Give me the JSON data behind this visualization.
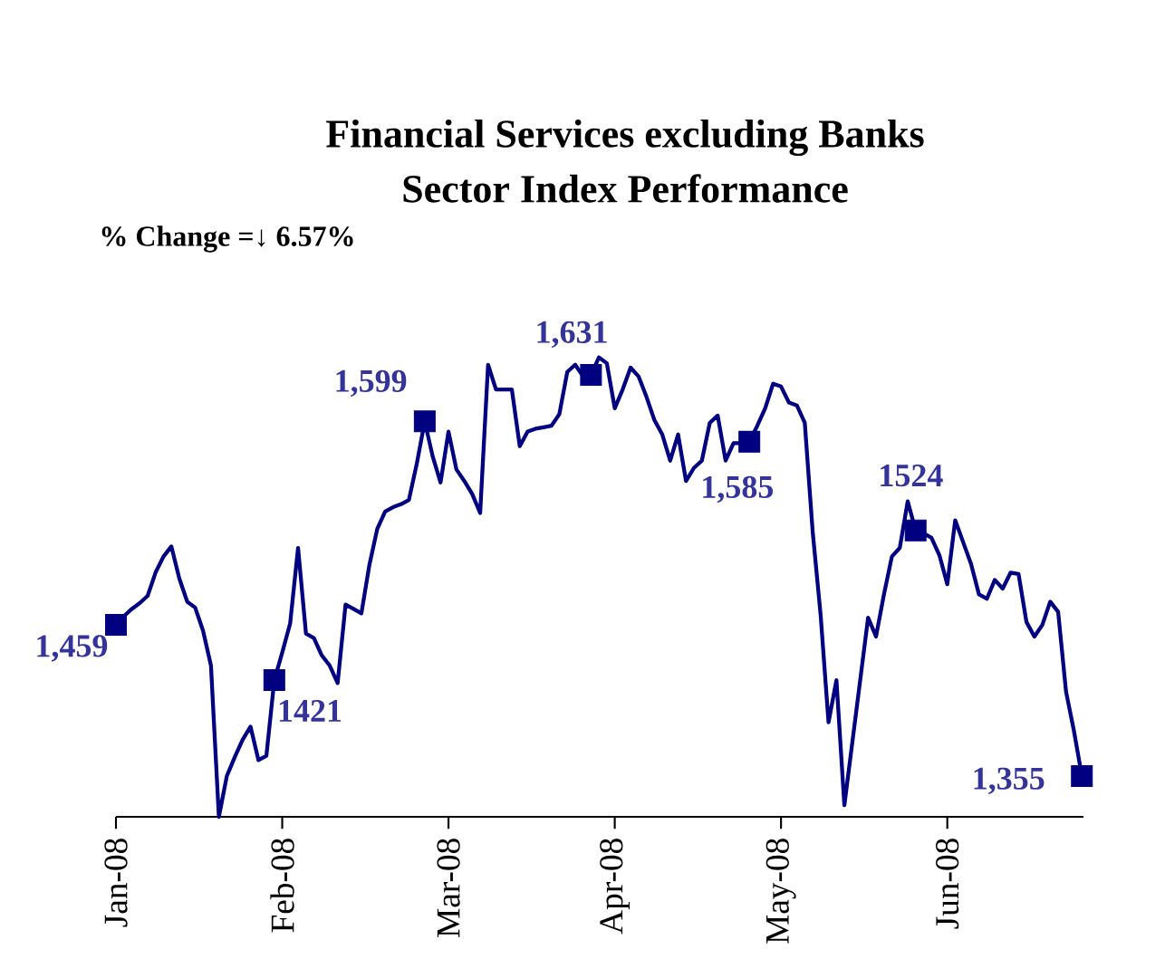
{
  "chart_data": {
    "type": "line",
    "title": "Financial Services excluding Banks",
    "subtitle": "Sector Index Performance",
    "annotations": [
      "% Change =↓ 6.57%"
    ],
    "categories": [
      "Jan-08",
      null,
      null,
      null,
      null,
      null,
      null,
      null,
      null,
      null,
      null,
      null,
      null,
      null,
      null,
      null,
      null,
      null,
      null,
      null,
      null,
      "Feb-08",
      null,
      null,
      null,
      null,
      null,
      null,
      null,
      null,
      null,
      null,
      null,
      null,
      null,
      null,
      null,
      null,
      null,
      null,
      null,
      null,
      "Mar-08",
      null,
      null,
      null,
      null,
      null,
      null,
      null,
      null,
      null,
      null,
      null,
      null,
      null,
      null,
      null,
      null,
      null,
      null,
      null,
      null,
      "Apr-08",
      null,
      null,
      null,
      null,
      null,
      null,
      null,
      null,
      null,
      null,
      null,
      null,
      null,
      null,
      null,
      null,
      null,
      null,
      null,
      null,
      "May-08",
      null,
      null,
      null,
      null,
      null,
      null,
      null,
      null,
      null,
      null,
      null,
      null,
      null,
      null,
      null,
      null,
      null,
      null,
      null,
      null,
      "Jun-08",
      null,
      null,
      null,
      null,
      null,
      null,
      null,
      null,
      null,
      null,
      null,
      null,
      null,
      null,
      null,
      null,
      null
    ],
    "tick_labels": "x",
    "series": [
      {
        "color": "#000080",
        "marker": "none",
        "values": [
          1459,
          1465,
          1470,
          1474,
          1479,
          1495,
          1506,
          1513,
          1491,
          1475,
          1471,
          1455,
          1431,
          1327,
          1355,
          1368,
          1380,
          1389,
          1366,
          1369,
          1421,
          1440,
          1460,
          1512,
          1453,
          1450,
          1438,
          1431,
          1419,
          1473,
          1470,
          1467,
          1500,
          1525,
          1537,
          1540,
          1542,
          1545,
          1570,
          1599,
          1575,
          1557,
          1592,
          1566,
          1558,
          1549,
          1536,
          1638,
          1621,
          1621,
          1621,
          1582,
          1592,
          1594,
          1595,
          1596,
          1604,
          1633,
          1638,
          1630,
          1631,
          1643,
          1639,
          1608,
          1621,
          1636,
          1630,
          1616,
          1600,
          1590,
          1572,
          1590,
          1558,
          1567,
          1572,
          1598,
          1603,
          1572,
          1584,
          1584,
          1585,
          1596,
          1608,
          1625,
          1623,
          1612,
          1610,
          1598,
          1523,
          1466,
          1392,
          1421,
          1335,
          1378,
          1421,
          1464,
          1451,
          1480,
          1506,
          1512,
          1544,
          1524,
          1522,
          1519,
          1507,
          1487,
          1531,
          1516,
          1501,
          1480,
          1477,
          1490,
          1484,
          1495,
          1494,
          1461,
          1451,
          1459,
          1475,
          1468,
          1413,
          1386,
          1355
        ]
      },
      {
        "type": "scatter",
        "color": "#000080",
        "marker": "square",
        "values": [
          1459,
          null,
          null,
          null,
          null,
          null,
          null,
          null,
          null,
          null,
          null,
          null,
          null,
          null,
          null,
          null,
          null,
          null,
          null,
          null,
          1421,
          null,
          null,
          null,
          null,
          null,
          null,
          null,
          null,
          null,
          null,
          null,
          null,
          null,
          null,
          null,
          null,
          null,
          null,
          1599,
          null,
          null,
          null,
          null,
          null,
          null,
          null,
          null,
          null,
          null,
          null,
          null,
          null,
          null,
          null,
          null,
          null,
          null,
          null,
          null,
          1631,
          null,
          null,
          null,
          null,
          null,
          null,
          null,
          null,
          null,
          null,
          null,
          null,
          null,
          null,
          null,
          null,
          null,
          null,
          null,
          1585,
          null,
          null,
          null,
          null,
          null,
          null,
          null,
          null,
          null,
          null,
          null,
          null,
          null,
          null,
          null,
          null,
          null,
          null,
          null,
          null,
          1524,
          null,
          null,
          null,
          null,
          null,
          null,
          null,
          null,
          null,
          null,
          null,
          null,
          null,
          null,
          null,
          null,
          null,
          null,
          null,
          null,
          1355
        ],
        "value_labels": [
          "1,459",
          null,
          null,
          null,
          null,
          null,
          null,
          null,
          null,
          null,
          null,
          null,
          null,
          null,
          null,
          null,
          null,
          null,
          null,
          null,
          "1421",
          null,
          null,
          null,
          null,
          null,
          null,
          null,
          null,
          null,
          null,
          null,
          null,
          null,
          null,
          null,
          null,
          null,
          null,
          "1,599",
          null,
          null,
          null,
          null,
          null,
          null,
          null,
          null,
          null,
          null,
          null,
          null,
          null,
          null,
          null,
          null,
          null,
          null,
          null,
          null,
          "1,631",
          null,
          null,
          null,
          null,
          null,
          null,
          null,
          null,
          null,
          null,
          null,
          null,
          null,
          null,
          null,
          null,
          null,
          null,
          null,
          "1,585",
          null,
          null,
          null,
          null,
          null,
          null,
          null,
          null,
          null,
          null,
          null,
          null,
          null,
          null,
          null,
          null,
          null,
          null,
          null,
          null,
          "1524",
          null,
          null,
          null,
          null,
          null,
          null,
          null,
          null,
          null,
          null,
          null,
          null,
          null,
          null,
          null,
          null,
          null,
          null,
          null,
          null,
          "1,355"
        ]
      }
    ]
  }
}
